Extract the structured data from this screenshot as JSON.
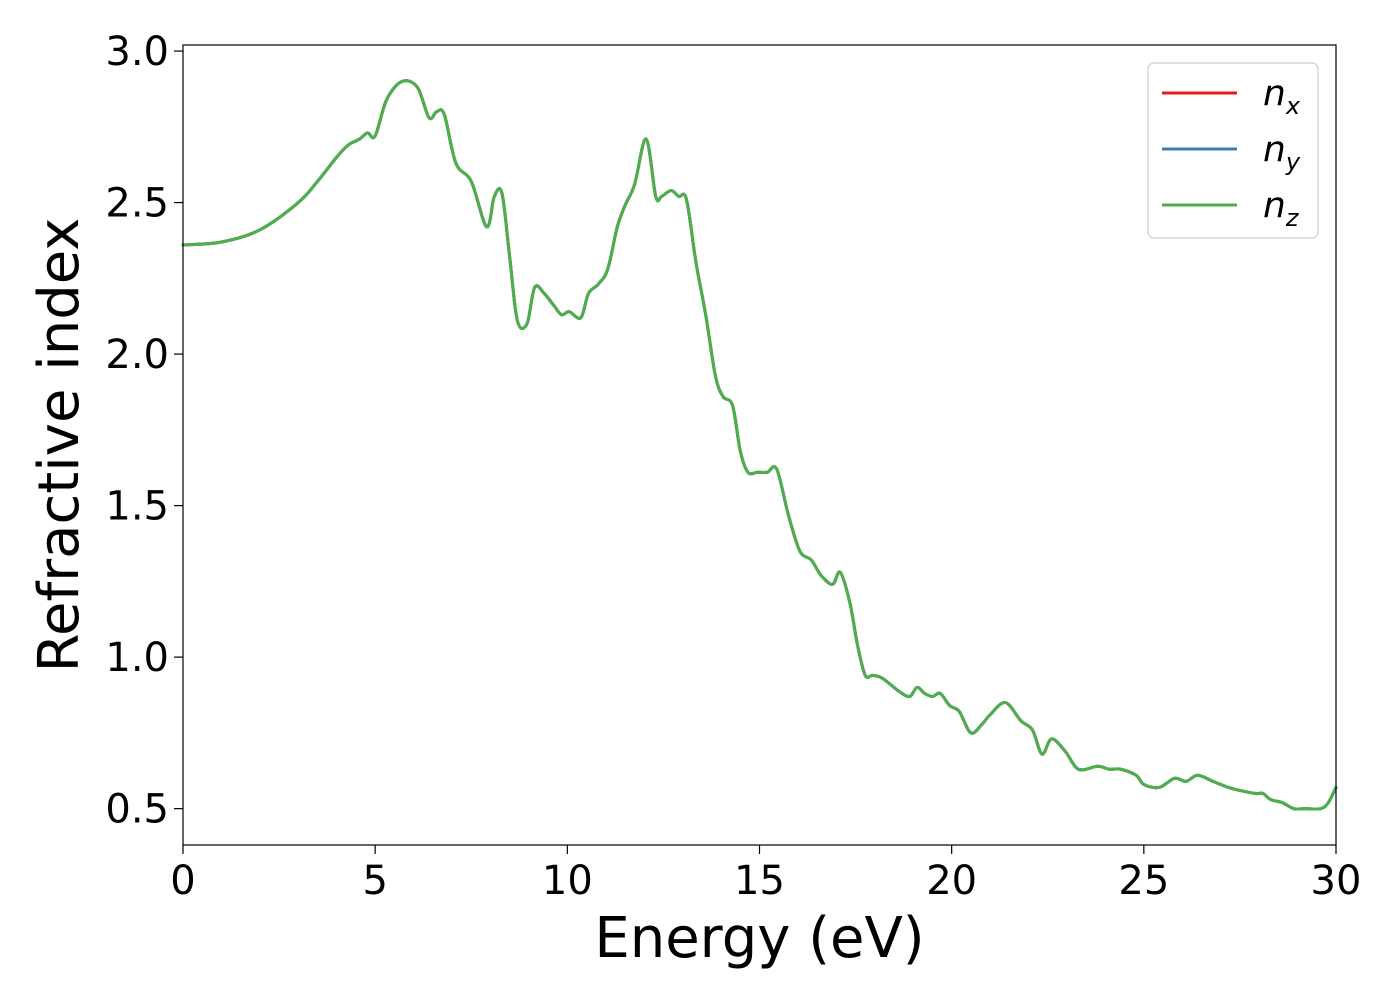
{
  "chart_data": {
    "type": "line",
    "title": "",
    "xlabel": "Energy (eV)",
    "ylabel": "Refractive index",
    "xlim": [
      0,
      30
    ],
    "ylim": [
      0.38,
      3.02
    ],
    "xticks": [
      "0",
      "5",
      "10",
      "15",
      "20",
      "25",
      "30"
    ],
    "yticks": [
      "0.5",
      "1.0",
      "1.5",
      "2.0",
      "2.5",
      "3.0"
    ],
    "grid": false,
    "legend_position": "top-right",
    "series": [
      {
        "name": "n",
        "subscript": "x",
        "color": "#e41a1c",
        "x": [
          0,
          1,
          2,
          3,
          3.5,
          4,
          4.3,
          4.6,
          4.8,
          5,
          5.3,
          5.7,
          6.1,
          6.4,
          6.6,
          6.8,
          7.1,
          7.5,
          7.9,
          8.1,
          8.3,
          8.5,
          8.7,
          8.95,
          9.15,
          9.4,
          9.65,
          9.85,
          10.05,
          10.35,
          10.55,
          10.8,
          11.05,
          11.3,
          11.5,
          11.75,
          12.05,
          12.3,
          12.45,
          12.7,
          12.9,
          13.1,
          13.35,
          13.6,
          13.85,
          14.05,
          14.3,
          14.5,
          14.7,
          14.95,
          15.2,
          15.45,
          15.75,
          16.05,
          16.35,
          16.6,
          16.9,
          17.1,
          17.35,
          17.55,
          17.75,
          17.95,
          18.2,
          18.6,
          18.9,
          19.1,
          19.3,
          19.5,
          19.7,
          19.95,
          20.2,
          20.5,
          20.8,
          21,
          21.4,
          21.8,
          22.1,
          22.35,
          22.6,
          22.95,
          23.3,
          23.8,
          24.1,
          24.4,
          24.8,
          25,
          25.4,
          25.8,
          26.1,
          26.4,
          26.8,
          27.2,
          27.5,
          27.9,
          28.1,
          28.3,
          28.6,
          28.9,
          29.2,
          29.6,
          29.8,
          30
        ],
        "values": [
          2.36,
          2.37,
          2.41,
          2.5,
          2.57,
          2.65,
          2.69,
          2.71,
          2.73,
          2.72,
          2.84,
          2.9,
          2.88,
          2.78,
          2.8,
          2.79,
          2.63,
          2.57,
          2.42,
          2.52,
          2.53,
          2.32,
          2.11,
          2.1,
          2.22,
          2.2,
          2.16,
          2.13,
          2.14,
          2.12,
          2.2,
          2.23,
          2.28,
          2.42,
          2.49,
          2.56,
          2.71,
          2.52,
          2.52,
          2.54,
          2.52,
          2.51,
          2.3,
          2.13,
          1.93,
          1.86,
          1.83,
          1.68,
          1.61,
          1.61,
          1.61,
          1.62,
          1.47,
          1.35,
          1.32,
          1.27,
          1.24,
          1.28,
          1.18,
          1.04,
          0.94,
          0.94,
          0.93,
          0.89,
          0.87,
          0.9,
          0.88,
          0.87,
          0.88,
          0.84,
          0.82,
          0.75,
          0.78,
          0.81,
          0.85,
          0.79,
          0.76,
          0.68,
          0.73,
          0.69,
          0.63,
          0.64,
          0.63,
          0.63,
          0.61,
          0.58,
          0.57,
          0.6,
          0.59,
          0.61,
          0.59,
          0.57,
          0.56,
          0.55,
          0.55,
          0.53,
          0.52,
          0.5,
          0.5,
          0.5,
          0.52,
          0.57
        ]
      },
      {
        "name": "n",
        "subscript": "y",
        "color": "#377eb8",
        "x": [
          0,
          1,
          2,
          3,
          3.5,
          4,
          4.3,
          4.6,
          4.8,
          5,
          5.3,
          5.7,
          6.1,
          6.4,
          6.6,
          6.8,
          7.1,
          7.5,
          7.9,
          8.1,
          8.3,
          8.5,
          8.7,
          8.95,
          9.15,
          9.4,
          9.65,
          9.85,
          10.05,
          10.35,
          10.55,
          10.8,
          11.05,
          11.3,
          11.5,
          11.75,
          12.05,
          12.3,
          12.45,
          12.7,
          12.9,
          13.1,
          13.35,
          13.6,
          13.85,
          14.05,
          14.3,
          14.5,
          14.7,
          14.95,
          15.2,
          15.45,
          15.75,
          16.05,
          16.35,
          16.6,
          16.9,
          17.1,
          17.35,
          17.55,
          17.75,
          17.95,
          18.2,
          18.6,
          18.9,
          19.1,
          19.3,
          19.5,
          19.7,
          19.95,
          20.2,
          20.5,
          20.8,
          21,
          21.4,
          21.8,
          22.1,
          22.35,
          22.6,
          22.95,
          23.3,
          23.8,
          24.1,
          24.4,
          24.8,
          25,
          25.4,
          25.8,
          26.1,
          26.4,
          26.8,
          27.2,
          27.5,
          27.9,
          28.1,
          28.3,
          28.6,
          28.9,
          29.2,
          29.6,
          29.8,
          30
        ],
        "values": [
          2.36,
          2.37,
          2.41,
          2.5,
          2.57,
          2.65,
          2.69,
          2.71,
          2.73,
          2.72,
          2.84,
          2.9,
          2.88,
          2.78,
          2.8,
          2.79,
          2.63,
          2.57,
          2.42,
          2.52,
          2.53,
          2.32,
          2.11,
          2.1,
          2.22,
          2.2,
          2.16,
          2.13,
          2.14,
          2.12,
          2.2,
          2.23,
          2.28,
          2.42,
          2.49,
          2.56,
          2.71,
          2.52,
          2.52,
          2.54,
          2.52,
          2.51,
          2.3,
          2.13,
          1.93,
          1.86,
          1.83,
          1.68,
          1.61,
          1.61,
          1.61,
          1.62,
          1.47,
          1.35,
          1.32,
          1.27,
          1.24,
          1.28,
          1.18,
          1.04,
          0.94,
          0.94,
          0.93,
          0.89,
          0.87,
          0.9,
          0.88,
          0.87,
          0.88,
          0.84,
          0.82,
          0.75,
          0.78,
          0.81,
          0.85,
          0.79,
          0.76,
          0.68,
          0.73,
          0.69,
          0.63,
          0.64,
          0.63,
          0.63,
          0.61,
          0.58,
          0.57,
          0.6,
          0.59,
          0.61,
          0.59,
          0.57,
          0.56,
          0.55,
          0.55,
          0.53,
          0.52,
          0.5,
          0.5,
          0.5,
          0.52,
          0.57
        ]
      },
      {
        "name": "n",
        "subscript": "z",
        "color": "#4daf4a",
        "x": [
          0,
          1,
          2,
          3,
          3.5,
          4,
          4.3,
          4.6,
          4.8,
          5,
          5.3,
          5.7,
          6.1,
          6.4,
          6.6,
          6.8,
          7.1,
          7.5,
          7.9,
          8.1,
          8.3,
          8.5,
          8.7,
          8.95,
          9.15,
          9.4,
          9.65,
          9.85,
          10.05,
          10.35,
          10.55,
          10.8,
          11.05,
          11.3,
          11.5,
          11.75,
          12.05,
          12.3,
          12.45,
          12.7,
          12.9,
          13.1,
          13.35,
          13.6,
          13.85,
          14.05,
          14.3,
          14.5,
          14.7,
          14.95,
          15.2,
          15.45,
          15.75,
          16.05,
          16.35,
          16.6,
          16.9,
          17.1,
          17.35,
          17.55,
          17.75,
          17.95,
          18.2,
          18.6,
          18.9,
          19.1,
          19.3,
          19.5,
          19.7,
          19.95,
          20.2,
          20.5,
          20.8,
          21,
          21.4,
          21.8,
          22.1,
          22.35,
          22.6,
          22.95,
          23.3,
          23.8,
          24.1,
          24.4,
          24.8,
          25,
          25.4,
          25.8,
          26.1,
          26.4,
          26.8,
          27.2,
          27.5,
          27.9,
          28.1,
          28.3,
          28.6,
          28.9,
          29.2,
          29.6,
          29.8,
          30
        ],
        "values": [
          2.36,
          2.37,
          2.41,
          2.5,
          2.57,
          2.65,
          2.69,
          2.71,
          2.73,
          2.72,
          2.84,
          2.9,
          2.88,
          2.78,
          2.8,
          2.79,
          2.63,
          2.57,
          2.42,
          2.52,
          2.53,
          2.32,
          2.11,
          2.1,
          2.22,
          2.2,
          2.16,
          2.13,
          2.14,
          2.12,
          2.2,
          2.23,
          2.28,
          2.42,
          2.49,
          2.56,
          2.71,
          2.52,
          2.52,
          2.54,
          2.52,
          2.51,
          2.3,
          2.13,
          1.93,
          1.86,
          1.83,
          1.68,
          1.61,
          1.61,
          1.61,
          1.62,
          1.47,
          1.35,
          1.32,
          1.27,
          1.24,
          1.28,
          1.18,
          1.04,
          0.94,
          0.94,
          0.93,
          0.89,
          0.87,
          0.9,
          0.88,
          0.87,
          0.88,
          0.84,
          0.82,
          0.75,
          0.78,
          0.81,
          0.85,
          0.79,
          0.76,
          0.68,
          0.73,
          0.69,
          0.63,
          0.64,
          0.63,
          0.63,
          0.61,
          0.58,
          0.57,
          0.6,
          0.59,
          0.61,
          0.59,
          0.57,
          0.56,
          0.55,
          0.55,
          0.53,
          0.52,
          0.5,
          0.5,
          0.5,
          0.52,
          0.57
        ]
      }
    ]
  }
}
